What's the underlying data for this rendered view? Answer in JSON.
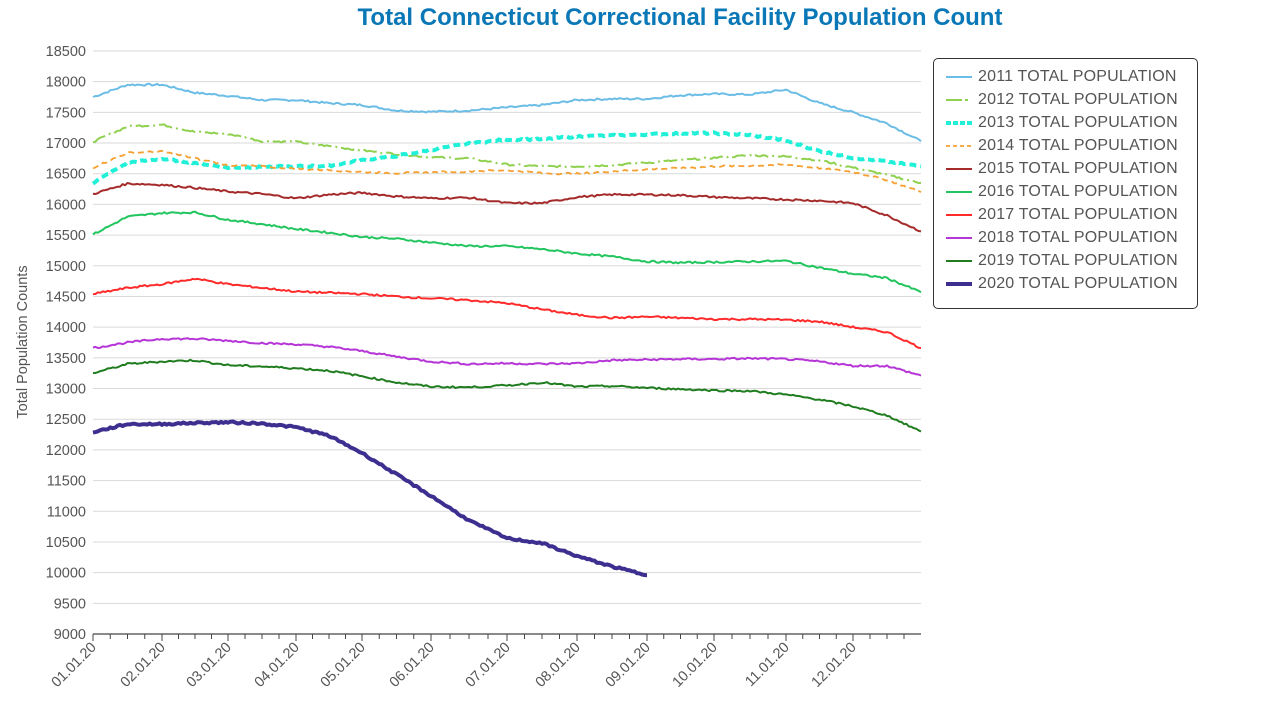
{
  "chart_data": {
    "type": "line",
    "title": "Total Connecticut Correctional Facility Population Count",
    "xlabel": "",
    "ylabel": "Total Population Counts",
    "ylim": [
      9000,
      18500
    ],
    "yticks": [
      9000,
      9500,
      10000,
      10500,
      11000,
      11500,
      12000,
      12500,
      13000,
      13500,
      14000,
      14500,
      15000,
      15500,
      16000,
      16500,
      17000,
      17500,
      18000,
      18500
    ],
    "ytick_labels": [
      "9000",
      "9500",
      "10000",
      "10500",
      "11000",
      "11500",
      "12000",
      "12500",
      "13000",
      "13500",
      "14000",
      "14500",
      "15000",
      "15500",
      "16000",
      "16500",
      "17000",
      "17500",
      "18000",
      "18500"
    ],
    "xlim": [
      "01.01.20",
      "12.31.20"
    ],
    "xtick_labels": [
      "01.01.20",
      "02.01.20",
      "03.01.20",
      "04.01.20",
      "05.01.20",
      "06.01.20",
      "07.01.20",
      "08.01.20",
      "09.01.20",
      "10.01.20",
      "11.01.20",
      "12.01.20"
    ],
    "x_units": "month index (0 = Jan 1, 12 = Dec 31), sampled every half month",
    "grid": true,
    "legend_position": "right",
    "x": [
      0,
      0.5,
      1,
      1.5,
      2,
      2.5,
      3,
      3.5,
      4,
      4.5,
      5,
      5.5,
      6,
      6.5,
      7,
      7.5,
      8,
      8.5,
      9,
      9.5,
      10,
      10.5,
      11,
      11.5,
      12
    ],
    "series": [
      {
        "name": "2011 TOTAL POPULATION",
        "color": "#6bbde6",
        "style": "solid",
        "values": [
          17750,
          17950,
          17950,
          17820,
          17770,
          17700,
          17700,
          17650,
          17620,
          17530,
          17510,
          17530,
          17580,
          17620,
          17700,
          17720,
          17720,
          17780,
          17800,
          17790,
          17870,
          17650,
          17500,
          17320,
          17030
        ]
      },
      {
        "name": "2012 TOTAL POPULATION",
        "color": "#8fd14f",
        "style": "dashdot",
        "values": [
          17020,
          17270,
          17300,
          17180,
          17150,
          17030,
          17020,
          16950,
          16880,
          16820,
          16770,
          16750,
          16650,
          16620,
          16620,
          16640,
          16680,
          16720,
          16760,
          16800,
          16780,
          16720,
          16600,
          16480,
          16350
        ]
      },
      {
        "name": "2013 TOTAL POPULATION",
        "color": "#20f0d8",
        "style": "dash-thick",
        "values": [
          16350,
          16680,
          16740,
          16680,
          16600,
          16610,
          16620,
          16630,
          16720,
          16790,
          16890,
          16990,
          17060,
          17060,
          17110,
          17120,
          17140,
          17160,
          17160,
          17130,
          17040,
          16870,
          16760,
          16700,
          16620
        ]
      },
      {
        "name": "2014 TOTAL POPULATION",
        "color": "#f5a031",
        "style": "dash",
        "values": [
          16600,
          16840,
          16860,
          16750,
          16640,
          16620,
          16580,
          16560,
          16530,
          16510,
          16520,
          16540,
          16560,
          16510,
          16500,
          16540,
          16570,
          16590,
          16620,
          16630,
          16650,
          16590,
          16530,
          16400,
          16200
        ]
      },
      {
        "name": "2015 TOTAL POPULATION",
        "color": "#a52a2a",
        "style": "solid",
        "values": [
          16170,
          16340,
          16320,
          16270,
          16210,
          16170,
          16100,
          16160,
          16190,
          16130,
          16100,
          16110,
          16020,
          16020,
          16120,
          16160,
          16160,
          16150,
          16120,
          16100,
          16080,
          16060,
          16020,
          15820,
          15560
        ]
      },
      {
        "name": "2016 TOTAL POPULATION",
        "color": "#22c55e",
        "style": "solid",
        "values": [
          15510,
          15800,
          15860,
          15870,
          15750,
          15680,
          15600,
          15540,
          15470,
          15440,
          15380,
          15320,
          15320,
          15270,
          15200,
          15150,
          15070,
          15050,
          15060,
          15070,
          15080,
          14970,
          14870,
          14800,
          14570
        ]
      },
      {
        "name": "2017 TOTAL POPULATION",
        "color": "#ff2a2a",
        "style": "solid",
        "values": [
          14540,
          14640,
          14700,
          14790,
          14700,
          14640,
          14580,
          14560,
          14540,
          14500,
          14470,
          14440,
          14390,
          14290,
          14200,
          14150,
          14170,
          14150,
          14130,
          14130,
          14120,
          14090,
          14000,
          13920,
          13660
        ]
      },
      {
        "name": "2018 TOTAL POPULATION",
        "color": "#b535d6",
        "style": "solid",
        "values": [
          13660,
          13750,
          13810,
          13810,
          13780,
          13740,
          13720,
          13680,
          13610,
          13520,
          13440,
          13400,
          13410,
          13400,
          13410,
          13460,
          13470,
          13480,
          13480,
          13490,
          13480,
          13440,
          13370,
          13370,
          13210
        ]
      },
      {
        "name": "2019 TOTAL POPULATION",
        "color": "#1f7d1f",
        "style": "solid",
        "values": [
          13250,
          13400,
          13440,
          13460,
          13380,
          13360,
          13330,
          13290,
          13200,
          13100,
          13030,
          13020,
          13050,
          13100,
          13030,
          13040,
          13010,
          12990,
          12970,
          12960,
          12900,
          12820,
          12710,
          12560,
          12300
        ]
      },
      {
        "name": "2020 TOTAL POPULATION",
        "color": "#3d2f8f",
        "style": "thick",
        "values": [
          12290,
          12420,
          12420,
          12440,
          12450,
          12430,
          12370,
          12230,
          11950,
          11600,
          11250,
          10850,
          10560,
          10480,
          10270,
          10100,
          9960,
          null,
          null,
          null,
          null,
          null,
          null,
          null,
          null
        ]
      }
    ]
  }
}
